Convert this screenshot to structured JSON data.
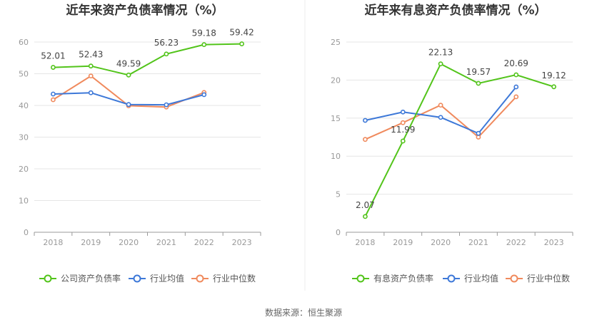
{
  "source": "数据来源：恒生聚源",
  "chart_data": [
    {
      "type": "line",
      "title": "近年来资产负债率情况（%）",
      "categories": [
        "2018",
        "2019",
        "2020",
        "2021",
        "2022",
        "2023"
      ],
      "ylim": [
        0,
        60
      ],
      "yticks": [
        0,
        10,
        20,
        30,
        40,
        50,
        60
      ],
      "grid": true,
      "legend_position": "bottom",
      "series": [
        {
          "name": "公司资产负债率",
          "color": "#52c41a",
          "labeled": true,
          "values": [
            52.01,
            52.43,
            49.59,
            56.23,
            59.18,
            59.42
          ]
        },
        {
          "name": "行业均值",
          "color": "#3d78d8",
          "values": [
            43.6,
            44.0,
            40.3,
            40.2,
            43.4,
            null
          ]
        },
        {
          "name": "行业中位数",
          "color": "#f08a5d",
          "values": [
            41.8,
            49.3,
            39.9,
            39.5,
            44.1,
            null
          ]
        }
      ]
    },
    {
      "type": "line",
      "title": "近年来有息资产负债率情况（%）",
      "categories": [
        "2018",
        "2019",
        "2020",
        "2021",
        "2022",
        "2023"
      ],
      "ylim": [
        0,
        25
      ],
      "yticks": [
        0,
        5,
        10,
        15,
        20,
        25
      ],
      "grid": true,
      "legend_position": "bottom",
      "series": [
        {
          "name": "有息资产负债率",
          "color": "#52c41a",
          "labeled": true,
          "values": [
            2.07,
            11.99,
            22.13,
            19.57,
            20.69,
            19.12
          ]
        },
        {
          "name": "行业均值",
          "color": "#3d78d8",
          "values": [
            14.7,
            15.8,
            15.1,
            13.0,
            19.1,
            null
          ]
        },
        {
          "name": "行业中位数",
          "color": "#f08a5d",
          "values": [
            12.2,
            14.4,
            16.7,
            12.5,
            17.8,
            null
          ]
        }
      ]
    }
  ]
}
